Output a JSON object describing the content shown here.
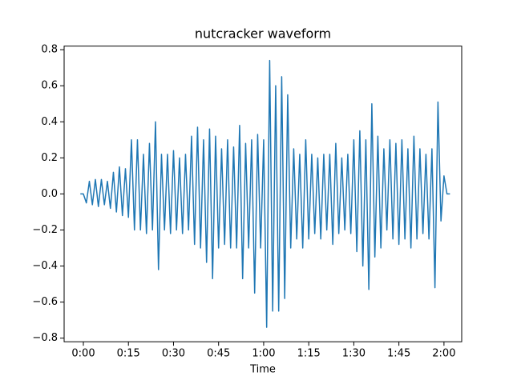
{
  "chart_data": {
    "type": "line",
    "title": "nutcracker waveform",
    "x_label": "Time",
    "x": [
      -1,
      0,
      1,
      2,
      3,
      4,
      5,
      6,
      7,
      8,
      9,
      10,
      11,
      12,
      13,
      14,
      15,
      16,
      17,
      18,
      19,
      20,
      21,
      22,
      23,
      24,
      25,
      26,
      27,
      28,
      29,
      30,
      31,
      32,
      33,
      34,
      35,
      36,
      37,
      38,
      39,
      40,
      41,
      42,
      43,
      44,
      45,
      46,
      47,
      48,
      49,
      50,
      51,
      52,
      53,
      54,
      55,
      56,
      57,
      58,
      59,
      60,
      61,
      62,
      63,
      64,
      65,
      66,
      67,
      68,
      69,
      70,
      71,
      72,
      73,
      74,
      75,
      76,
      77,
      78,
      79,
      80,
      81,
      82,
      83,
      84,
      85,
      86,
      87,
      88,
      89,
      90,
      91,
      92,
      93,
      94,
      95,
      96,
      97,
      98,
      99,
      100,
      101,
      102,
      103,
      104,
      105,
      106,
      107,
      108,
      109,
      110,
      111,
      112,
      113,
      114,
      115,
      116,
      117,
      118,
      119,
      120,
      121,
      122
    ],
    "series": [
      {
        "color": "#1f77b4",
        "values": [
          0,
          0,
          -0.05,
          0.07,
          -0.06,
          0.08,
          -0.07,
          0.08,
          -0.06,
          0.07,
          -0.08,
          0.12,
          -0.1,
          0.15,
          -0.12,
          0.14,
          -0.13,
          0.3,
          -0.2,
          0.3,
          -0.2,
          0.22,
          -0.22,
          0.28,
          -0.2,
          0.4,
          -0.42,
          0.22,
          -0.2,
          0.22,
          -0.22,
          0.24,
          -0.2,
          0.2,
          -0.22,
          0.22,
          -0.2,
          0.32,
          -0.28,
          0.37,
          -0.3,
          0.3,
          -0.38,
          0.36,
          -0.47,
          0.32,
          -0.3,
          0.25,
          -0.28,
          0.3,
          -0.3,
          0.26,
          -0.3,
          0.38,
          -0.47,
          0.28,
          -0.3,
          0.3,
          -0.55,
          0.33,
          -0.3,
          0.3,
          -0.74,
          0.74,
          -0.65,
          0.6,
          -0.65,
          0.65,
          -0.58,
          0.55,
          -0.3,
          0.25,
          -0.25,
          0.22,
          -0.3,
          0.3,
          -0.25,
          0.22,
          -0.22,
          0.2,
          -0.25,
          0.22,
          -0.2,
          0.22,
          -0.28,
          0.28,
          -0.22,
          0.2,
          -0.2,
          0.22,
          -0.22,
          0.3,
          -0.32,
          0.35,
          -0.4,
          0.3,
          -0.53,
          0.5,
          -0.35,
          0.32,
          -0.3,
          0.25,
          -0.2,
          0.3,
          -0.25,
          0.28,
          -0.28,
          0.3,
          -0.25,
          0.25,
          -0.3,
          0.32,
          -0.25,
          0.25,
          -0.22,
          0.22,
          -0.25,
          0.25,
          -0.52,
          0.51,
          -0.15,
          0.1,
          0,
          0
        ]
      }
    ],
    "xlim": [
      -6.4,
      125.9
    ],
    "ylim": [
      -0.82,
      0.82
    ],
    "xticks": [
      {
        "value": 0,
        "label": "0:00"
      },
      {
        "value": 15,
        "label": "0:15"
      },
      {
        "value": 30,
        "label": "0:30"
      },
      {
        "value": 45,
        "label": "0:45"
      },
      {
        "value": 60,
        "label": "1:00"
      },
      {
        "value": 75,
        "label": "1:15"
      },
      {
        "value": 90,
        "label": "1:30"
      },
      {
        "value": 105,
        "label": "1:45"
      },
      {
        "value": 120,
        "label": "2:00"
      }
    ],
    "yticks": [
      {
        "value": -0.8,
        "label": "−0.8"
      },
      {
        "value": -0.6,
        "label": "−0.6"
      },
      {
        "value": -0.4,
        "label": "−0.4"
      },
      {
        "value": -0.2,
        "label": "−0.2"
      },
      {
        "value": 0,
        "label": "0.0"
      },
      0.2,
      0.4,
      0.6,
      0.8
    ]
  }
}
